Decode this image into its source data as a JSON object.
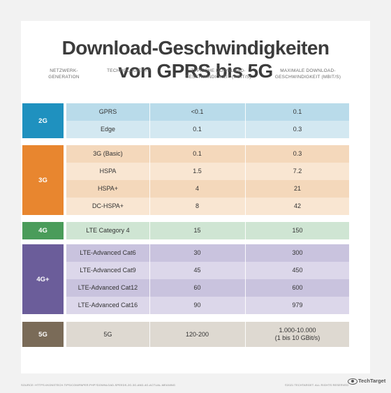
{
  "title_line1": "Download-Geschwindigkeiten",
  "title_line2": "von GPRS bis 5G",
  "headers": {
    "generation": "NETZWERK-\nGENERATION",
    "technology": "TECHNOLOGIETYP",
    "typical": "TYPISCHE DOWNLOAD-\nGESCHWINDIGKEIT (MBIT/S)",
    "maximum": "MAXIMALE DOWNLOAD-\nGESCHWINDIGKEIT (MBIT/S)"
  },
  "groups": [
    {
      "generation": "2G",
      "color": "#1f91bf",
      "rows": [
        {
          "technology": "GPRS",
          "typical": "<0.1",
          "maximum": "0.1"
        },
        {
          "technology": "Edge",
          "typical": "0.1",
          "maximum": "0.3"
        }
      ]
    },
    {
      "generation": "3G",
      "color": "#e8862f",
      "rows": [
        {
          "technology": "3G (Basic)",
          "typical": "0.1",
          "maximum": "0.3"
        },
        {
          "technology": "HSPA",
          "typical": "1.5",
          "maximum": "7.2"
        },
        {
          "technology": "HSPA+",
          "typical": "4",
          "maximum": "21"
        },
        {
          "technology": "DC-HSPA+",
          "typical": "8",
          "maximum": "42"
        }
      ]
    },
    {
      "generation": "4G",
      "color": "#4a9c5a",
      "rows": [
        {
          "technology": "LTE Category 4",
          "typical": "15",
          "maximum": "150"
        }
      ]
    },
    {
      "generation": "4G+",
      "color": "#6b5d9a",
      "rows": [
        {
          "technology": "LTE-Advanced Cat6",
          "typical": "30",
          "maximum": "300"
        },
        {
          "technology": "LTE-Advanced Cat9",
          "typical": "45",
          "maximum": "450"
        },
        {
          "technology": "LTE-Advanced Cat12",
          "typical": "60",
          "maximum": "600"
        },
        {
          "technology": "LTE-Advanced Cat16",
          "typical": "90",
          "maximum": "979"
        }
      ]
    },
    {
      "generation": "5G",
      "color": "#7a6b58",
      "rows": [
        {
          "technology": "5G",
          "typical": "120-200",
          "maximum": "1.000-10.000\n(1 bis 10 GBit/s)"
        }
      ]
    }
  ],
  "footer": {
    "source": "SOURCE: HTTPS://KONSTECH.TIPS/COM/PAPER.PHP?DOWNLOAD-SPEEDS-2G-3G-AND-4G-ACTUAL-MEANING",
    "copyright": "©2021 TECHTARGET. ALL RIGHTS RESERVED",
    "brand": "TechTarget"
  }
}
